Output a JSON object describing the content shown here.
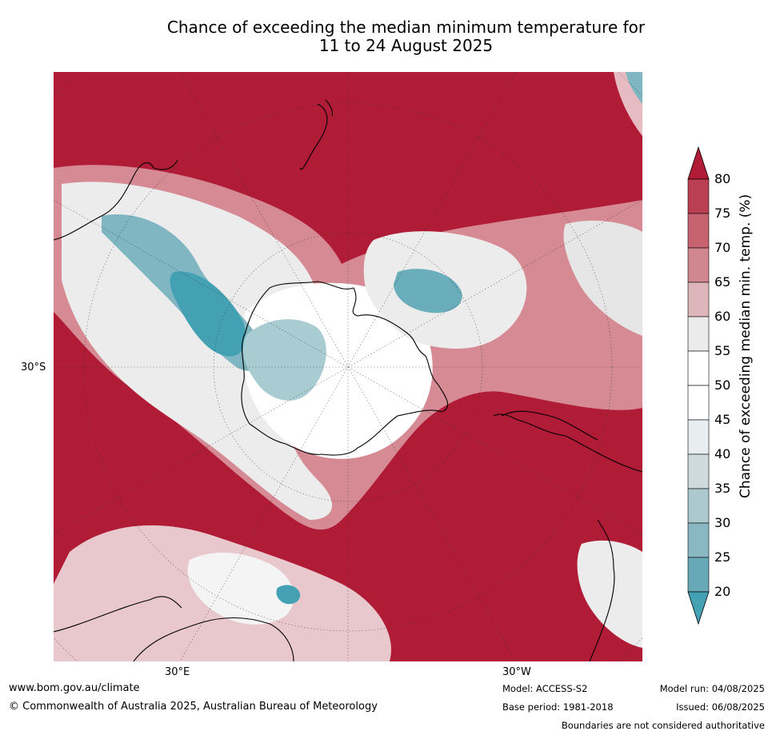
{
  "title": {
    "line1": "Chance of exceeding the median minimum temperature for",
    "line2": "11 to 24 August 2025"
  },
  "map": {
    "labels": {
      "lat_30s": "30°S",
      "lon_30e": "30°E",
      "lon_30w": "30°W"
    },
    "colors": {
      "very_high": "#b01b36",
      "high": "#c65c6c",
      "mid_high": "#e0b5bb",
      "neutral": "#eaeaea",
      "white": "#ffffff",
      "low": "#c6dbe0",
      "very_low": "#44a1b3"
    }
  },
  "colorbar": {
    "label": "Chance of exceeding median min. temp. (%)",
    "ticks": [
      "80",
      "75",
      "70",
      "65",
      "60",
      "55",
      "50",
      "45",
      "40",
      "35",
      "30",
      "25",
      "20"
    ],
    "colors": [
      "#b01b36",
      "#bb3f52",
      "#c6636f",
      "#d1878f",
      "#ddb6bc",
      "#ebebeb",
      "#ffffff",
      "#ffffff",
      "#e8eef0",
      "#cfdadc",
      "#abc9cf",
      "#89b8c3",
      "#67a9b6",
      "#44a1b3"
    ]
  },
  "footer": {
    "url": "www.bom.gov.au/climate",
    "copyright": "© Commonwealth of Australia 2025, Australian Bureau of Meteorology",
    "model": "Model: ACCESS-S2",
    "base_period": "Base period: 1981-2018",
    "model_run": "Model run: 04/08/2025",
    "issued": "Issued: 06/08/2025",
    "disclaimer": "Boundaries are not considered authoritative"
  }
}
